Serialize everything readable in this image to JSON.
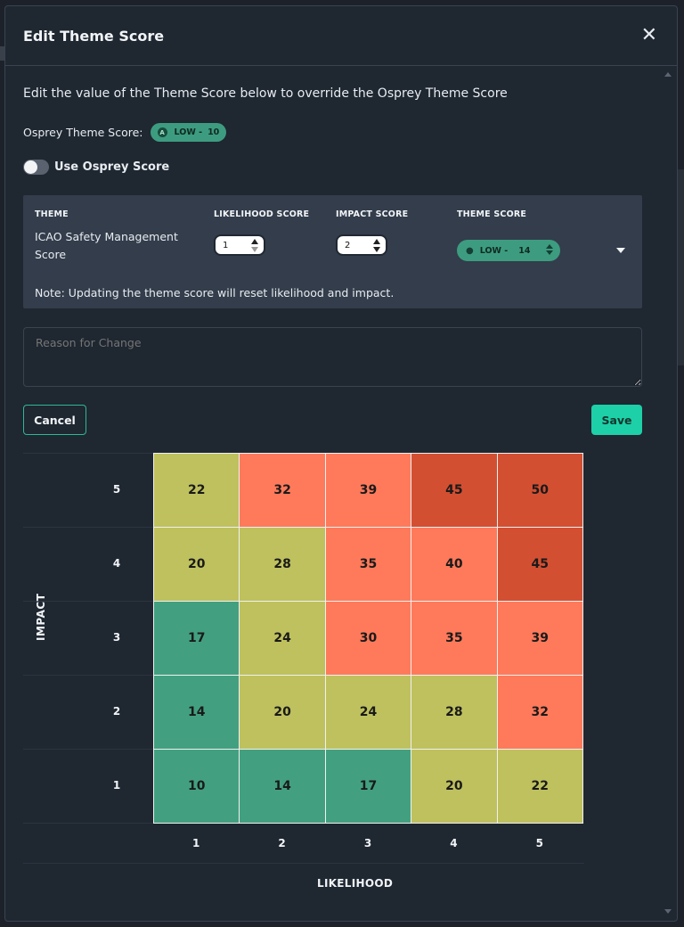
{
  "modal": {
    "title": "Edit Theme Score",
    "close_icon": "close-icon"
  },
  "intro": "Edit the value of the Theme Score below to override the Osprey Theme Score",
  "osprey_score": {
    "label": "Osprey Theme Score:",
    "badge_icon": "a-badge-icon",
    "level": "LOW -",
    "value": "10"
  },
  "toggle": {
    "label": "Use Osprey Score",
    "on": false
  },
  "theme_table": {
    "headers": [
      "THEME",
      "LIKELIHOOD SCORE",
      "IMPACT SCORE",
      "THEME SCORE"
    ],
    "theme_name": "ICAO Safety Management Score",
    "likelihood": "1",
    "impact": "2",
    "theme_score_level": "LOW -",
    "theme_score_value": "14",
    "note": "Note: Updating the theme score will reset likelihood and impact."
  },
  "reason": {
    "placeholder": "Reason for Change"
  },
  "buttons": {
    "cancel": "Cancel",
    "save": "Save"
  },
  "colors": {
    "green": "#42a080",
    "yellow": "#bec15d",
    "orange": "#fe7a5b",
    "red": "#d34f32"
  },
  "chart_data": {
    "type": "heatmap",
    "xlabel": "LIKELIHOOD",
    "ylabel": "IMPACT",
    "x": [
      "1",
      "2",
      "3",
      "4",
      "5"
    ],
    "y": [
      "5",
      "4",
      "3",
      "2",
      "1"
    ],
    "values": [
      [
        22,
        32,
        39,
        45,
        50
      ],
      [
        20,
        28,
        35,
        40,
        45
      ],
      [
        17,
        24,
        30,
        35,
        39
      ],
      [
        14,
        20,
        24,
        28,
        32
      ],
      [
        10,
        14,
        17,
        20,
        22
      ]
    ],
    "levels": [
      [
        "yellow",
        "orange",
        "orange",
        "red",
        "red"
      ],
      [
        "yellow",
        "yellow",
        "orange",
        "orange",
        "red"
      ],
      [
        "green",
        "yellow",
        "orange",
        "orange",
        "orange"
      ],
      [
        "green",
        "yellow",
        "yellow",
        "yellow",
        "orange"
      ],
      [
        "green",
        "green",
        "green",
        "yellow",
        "yellow"
      ]
    ]
  }
}
